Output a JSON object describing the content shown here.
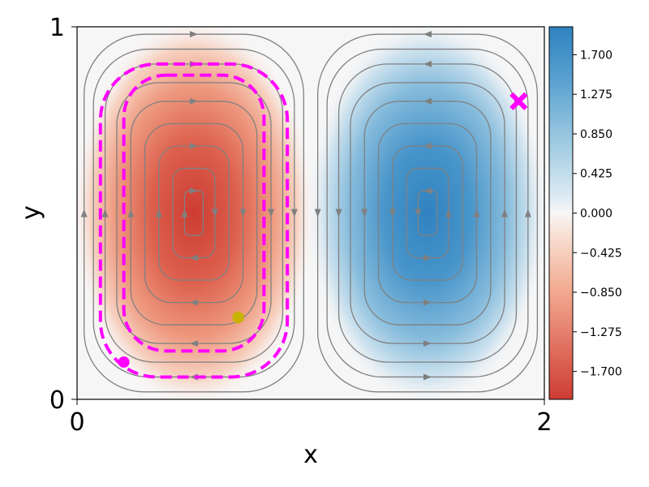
{
  "chart_data": {
    "type": "heatmap",
    "title": "",
    "xlabel": "x",
    "ylabel": "y",
    "xlim": [
      0,
      2
    ],
    "ylim": [
      0,
      1
    ],
    "x_ticks": [
      "0",
      "2"
    ],
    "y_ticks": [
      "0",
      "1"
    ],
    "field": {
      "description": "two counter-rotating cells",
      "left_cell_center": [
        0.5,
        0.5
      ],
      "left_cell_value": -2.0,
      "right_cell_center": [
        1.5,
        0.5
      ],
      "right_cell_value": 2.0
    },
    "colorbar": {
      "vmin": -2.0,
      "vmax": 2.0,
      "ticks": [
        1.7,
        1.275,
        0.85,
        0.425,
        0.0,
        -0.425,
        -0.85,
        -1.275,
        -1.7
      ],
      "tick_labels": [
        "1.700",
        "1.275",
        "0.850",
        "0.425",
        "0.000",
        "−0.425",
        "−0.850",
        "−1.275",
        "−1.700"
      ],
      "colormap": "RdBu",
      "low_color": "#cd3c33",
      "mid_color": "#f7f6f6",
      "high_color": "#2f82c0"
    },
    "streamline_color": "#808080",
    "trajectories": [
      {
        "kind": "outer-closed-dashed",
        "center": [
          0.5,
          0.48
        ],
        "half_width": 0.4,
        "half_height": 0.42,
        "color": "#ff00ff"
      },
      {
        "kind": "inner-closed-dashed",
        "center": [
          0.5,
          0.5
        ],
        "half_width": 0.3,
        "half_height": 0.37,
        "color": "#ff00ff"
      }
    ],
    "markers": [
      {
        "name": "start-point",
        "x": 0.2,
        "y": 0.1,
        "shape": "circle",
        "color": "#ff00ff"
      },
      {
        "name": "mid-point",
        "x": 0.69,
        "y": 0.22,
        "shape": "hexagon",
        "color": "#c8b400"
      },
      {
        "name": "end-point",
        "x": 1.89,
        "y": 0.8,
        "shape": "x",
        "color": "#ff00ff"
      }
    ]
  }
}
